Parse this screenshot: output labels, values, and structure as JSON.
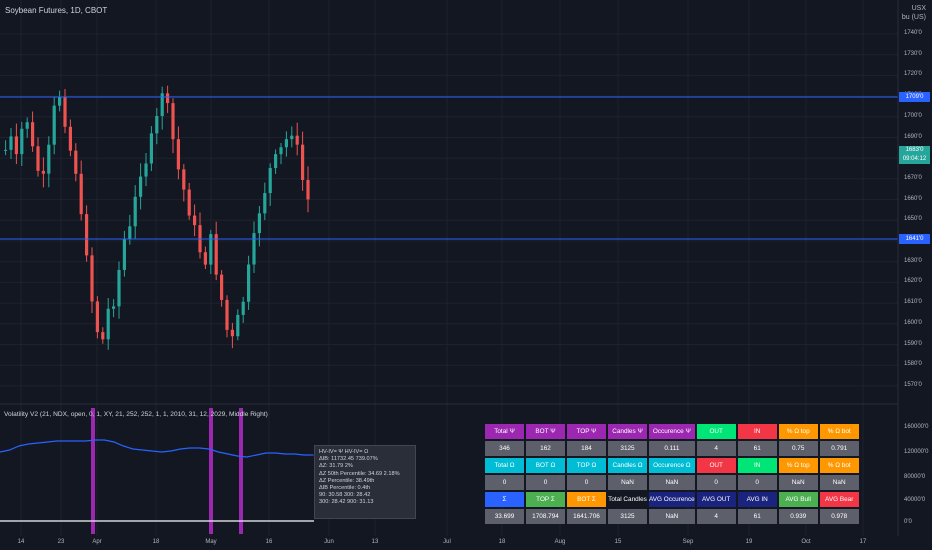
{
  "header": {
    "symbol_title": "Soybean Futures, 1D, CBOT"
  },
  "currency": {
    "line1": "USX",
    "line2": "bu (US)"
  },
  "price_axis": {
    "ticks": [
      "1740'0",
      "1730'0",
      "1720'0",
      "1710'0",
      "1700'0",
      "1690'0",
      "1680'0",
      "1670'0",
      "1660'0",
      "1650'0",
      "1640'0",
      "1630'0",
      "1620'0",
      "1610'0",
      "1600'0",
      "1590'0",
      "1580'0",
      "1570'0"
    ]
  },
  "price_badges": {
    "upper_line": "1709'0",
    "last_price": "1683'0",
    "countdown": "09:04:12",
    "lower_line": "1641'0"
  },
  "indicator_axis": {
    "ticks": [
      "160000'0",
      "120000'0",
      "80000'0",
      "40000'0",
      "0'0"
    ]
  },
  "time_axis": {
    "ticks": [
      "14",
      "23",
      "Apr",
      "18",
      "May",
      "16",
      "Jun",
      "13",
      "Jul",
      "18",
      "Aug",
      "15",
      "Sep",
      "19",
      "Oct",
      "17"
    ]
  },
  "indicator": {
    "title": "Volatility V2 (21, NDX, open, 0, 1, XY, 21, 252, 252, 1, 1, 2010, 31, 12, 2029, Middle Right)"
  },
  "tooltip": {
    "lines": [
      "HV-IV= Ψ  HV-IV= Ω",
      "ΔIB: 11732.45  739.07%",
      "ΔZ: 31.79  2%",
      "ΔZ 50th Percentile: 34.69  2.18%",
      "ΔZ Percentile: 38.49th",
      "ΔIB Percentile: 0.4th",
      "90: 30.58  300: 28.42",
      "300: 28.42  900: 31.13"
    ]
  },
  "stats_table": {
    "rows": [
      [
        "Total Ψ",
        "BOT Ψ",
        "TOP Ψ",
        "Candles Ψ",
        "Occurence Ψ",
        "OUT",
        "IN",
        "% Ω top",
        "% Ω bot"
      ],
      [
        "346",
        "162",
        "184",
        "3125",
        "0.111",
        "4",
        "61",
        "0.75",
        "0.791"
      ],
      [
        "Total Ω",
        "BOT Ω",
        "TOP Ω",
        "Candles Ω",
        "Occurence Ω",
        "OUT",
        "IN",
        "% Ω top",
        "% Ω bot"
      ],
      [
        "0",
        "0",
        "0",
        "NaN",
        "NaN",
        "0",
        "0",
        "NaN",
        "NaN"
      ],
      [
        "Σ",
        "TOP Σ",
        "BOT Σ",
        "Total Candles",
        "AVG Occurence",
        "AVG OUT",
        "AVG IN",
        "AVG Bull",
        "AVG Bear"
      ],
      [
        "33.699",
        "1708.794",
        "1641.706",
        "3125",
        "NaN",
        "4",
        "61",
        "0.939",
        "0.978"
      ]
    ]
  },
  "colors": {
    "up": "#26a69a",
    "down": "#ef5350",
    "hline": "#2962ff",
    "vol_line": "#2962ff",
    "bar": "#9c27b0"
  }
}
